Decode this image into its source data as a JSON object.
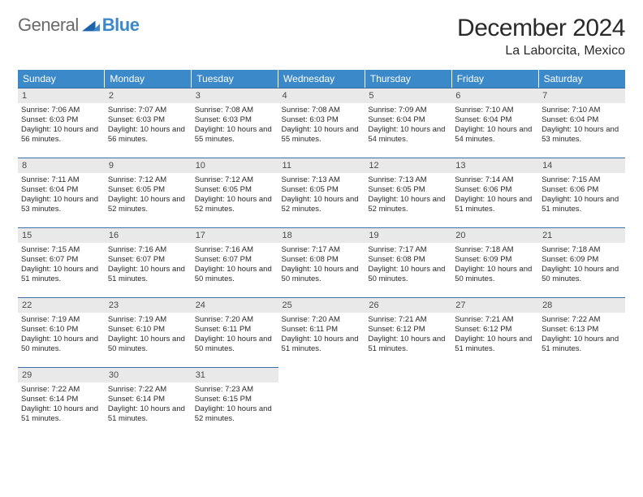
{
  "logo": {
    "part1": "General",
    "part2": "Blue"
  },
  "title": "December 2024",
  "location": "La Laborcita, Mexico",
  "day_headers": [
    "Sunday",
    "Monday",
    "Tuesday",
    "Wednesday",
    "Thursday",
    "Friday",
    "Saturday"
  ],
  "colors": {
    "header_bg": "#3b89c9",
    "header_text": "#ffffff",
    "daynum_bg": "#e9e9e9",
    "daynum_border_top": "#3b6fa5",
    "body_text": "#2a2a2a"
  },
  "days": [
    {
      "n": "1",
      "sunrise": "Sunrise: 7:06 AM",
      "sunset": "Sunset: 6:03 PM",
      "daylight": "Daylight: 10 hours and 56 minutes."
    },
    {
      "n": "2",
      "sunrise": "Sunrise: 7:07 AM",
      "sunset": "Sunset: 6:03 PM",
      "daylight": "Daylight: 10 hours and 56 minutes."
    },
    {
      "n": "3",
      "sunrise": "Sunrise: 7:08 AM",
      "sunset": "Sunset: 6:03 PM",
      "daylight": "Daylight: 10 hours and 55 minutes."
    },
    {
      "n": "4",
      "sunrise": "Sunrise: 7:08 AM",
      "sunset": "Sunset: 6:03 PM",
      "daylight": "Daylight: 10 hours and 55 minutes."
    },
    {
      "n": "5",
      "sunrise": "Sunrise: 7:09 AM",
      "sunset": "Sunset: 6:04 PM",
      "daylight": "Daylight: 10 hours and 54 minutes."
    },
    {
      "n": "6",
      "sunrise": "Sunrise: 7:10 AM",
      "sunset": "Sunset: 6:04 PM",
      "daylight": "Daylight: 10 hours and 54 minutes."
    },
    {
      "n": "7",
      "sunrise": "Sunrise: 7:10 AM",
      "sunset": "Sunset: 6:04 PM",
      "daylight": "Daylight: 10 hours and 53 minutes."
    },
    {
      "n": "8",
      "sunrise": "Sunrise: 7:11 AM",
      "sunset": "Sunset: 6:04 PM",
      "daylight": "Daylight: 10 hours and 53 minutes."
    },
    {
      "n": "9",
      "sunrise": "Sunrise: 7:12 AM",
      "sunset": "Sunset: 6:05 PM",
      "daylight": "Daylight: 10 hours and 52 minutes."
    },
    {
      "n": "10",
      "sunrise": "Sunrise: 7:12 AM",
      "sunset": "Sunset: 6:05 PM",
      "daylight": "Daylight: 10 hours and 52 minutes."
    },
    {
      "n": "11",
      "sunrise": "Sunrise: 7:13 AM",
      "sunset": "Sunset: 6:05 PM",
      "daylight": "Daylight: 10 hours and 52 minutes."
    },
    {
      "n": "12",
      "sunrise": "Sunrise: 7:13 AM",
      "sunset": "Sunset: 6:05 PM",
      "daylight": "Daylight: 10 hours and 52 minutes."
    },
    {
      "n": "13",
      "sunrise": "Sunrise: 7:14 AM",
      "sunset": "Sunset: 6:06 PM",
      "daylight": "Daylight: 10 hours and 51 minutes."
    },
    {
      "n": "14",
      "sunrise": "Sunrise: 7:15 AM",
      "sunset": "Sunset: 6:06 PM",
      "daylight": "Daylight: 10 hours and 51 minutes."
    },
    {
      "n": "15",
      "sunrise": "Sunrise: 7:15 AM",
      "sunset": "Sunset: 6:07 PM",
      "daylight": "Daylight: 10 hours and 51 minutes."
    },
    {
      "n": "16",
      "sunrise": "Sunrise: 7:16 AM",
      "sunset": "Sunset: 6:07 PM",
      "daylight": "Daylight: 10 hours and 51 minutes."
    },
    {
      "n": "17",
      "sunrise": "Sunrise: 7:16 AM",
      "sunset": "Sunset: 6:07 PM",
      "daylight": "Daylight: 10 hours and 50 minutes."
    },
    {
      "n": "18",
      "sunrise": "Sunrise: 7:17 AM",
      "sunset": "Sunset: 6:08 PM",
      "daylight": "Daylight: 10 hours and 50 minutes."
    },
    {
      "n": "19",
      "sunrise": "Sunrise: 7:17 AM",
      "sunset": "Sunset: 6:08 PM",
      "daylight": "Daylight: 10 hours and 50 minutes."
    },
    {
      "n": "20",
      "sunrise": "Sunrise: 7:18 AM",
      "sunset": "Sunset: 6:09 PM",
      "daylight": "Daylight: 10 hours and 50 minutes."
    },
    {
      "n": "21",
      "sunrise": "Sunrise: 7:18 AM",
      "sunset": "Sunset: 6:09 PM",
      "daylight": "Daylight: 10 hours and 50 minutes."
    },
    {
      "n": "22",
      "sunrise": "Sunrise: 7:19 AM",
      "sunset": "Sunset: 6:10 PM",
      "daylight": "Daylight: 10 hours and 50 minutes."
    },
    {
      "n": "23",
      "sunrise": "Sunrise: 7:19 AM",
      "sunset": "Sunset: 6:10 PM",
      "daylight": "Daylight: 10 hours and 50 minutes."
    },
    {
      "n": "24",
      "sunrise": "Sunrise: 7:20 AM",
      "sunset": "Sunset: 6:11 PM",
      "daylight": "Daylight: 10 hours and 50 minutes."
    },
    {
      "n": "25",
      "sunrise": "Sunrise: 7:20 AM",
      "sunset": "Sunset: 6:11 PM",
      "daylight": "Daylight: 10 hours and 51 minutes."
    },
    {
      "n": "26",
      "sunrise": "Sunrise: 7:21 AM",
      "sunset": "Sunset: 6:12 PM",
      "daylight": "Daylight: 10 hours and 51 minutes."
    },
    {
      "n": "27",
      "sunrise": "Sunrise: 7:21 AM",
      "sunset": "Sunset: 6:12 PM",
      "daylight": "Daylight: 10 hours and 51 minutes."
    },
    {
      "n": "28",
      "sunrise": "Sunrise: 7:22 AM",
      "sunset": "Sunset: 6:13 PM",
      "daylight": "Daylight: 10 hours and 51 minutes."
    },
    {
      "n": "29",
      "sunrise": "Sunrise: 7:22 AM",
      "sunset": "Sunset: 6:14 PM",
      "daylight": "Daylight: 10 hours and 51 minutes."
    },
    {
      "n": "30",
      "sunrise": "Sunrise: 7:22 AM",
      "sunset": "Sunset: 6:14 PM",
      "daylight": "Daylight: 10 hours and 51 minutes."
    },
    {
      "n": "31",
      "sunrise": "Sunrise: 7:23 AM",
      "sunset": "Sunset: 6:15 PM",
      "daylight": "Daylight: 10 hours and 52 minutes."
    }
  ]
}
